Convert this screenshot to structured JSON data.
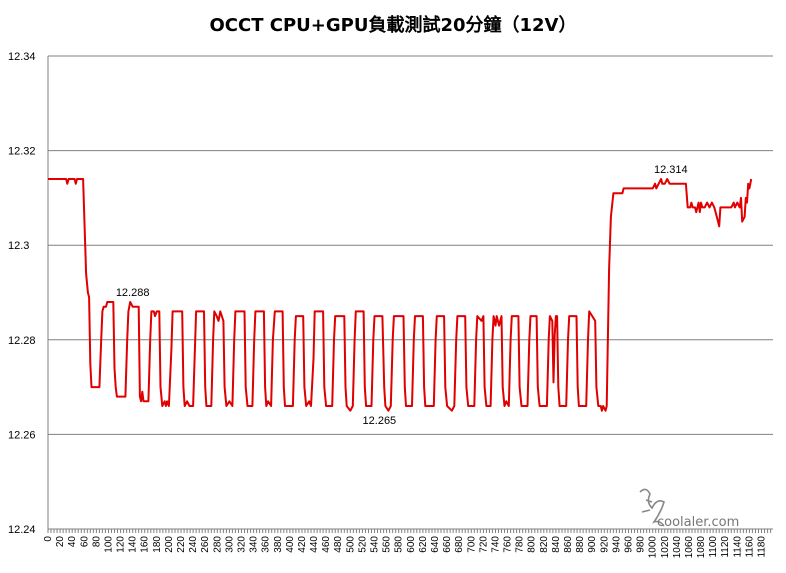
{
  "chart_data": {
    "type": "line",
    "title": "OCCT CPU+GPU負載測試20分鐘（12V）",
    "xlabel": "",
    "ylabel": "",
    "xlim": [
      0,
      1199
    ],
    "ylim": [
      12.24,
      12.34
    ],
    "y_ticks": [
      "12.24",
      "12.26",
      "12.28",
      "12.3",
      "12.32",
      "12.34"
    ],
    "x_tick_step": 20,
    "x_tick_max": 1180,
    "grid": true,
    "line_color": "#e00000",
    "series": [
      {
        "points": [
          [
            0,
            12.314
          ],
          [
            30,
            12.314
          ],
          [
            32,
            12.313
          ],
          [
            34,
            12.314
          ],
          [
            44,
            12.314
          ],
          [
            46,
            12.313
          ],
          [
            48,
            12.314
          ],
          [
            58,
            12.314
          ],
          [
            60,
            12.306
          ],
          [
            63,
            12.294
          ],
          [
            66,
            12.29
          ],
          [
            68,
            12.289
          ],
          [
            70,
            12.275
          ],
          [
            72,
            12.27
          ],
          [
            85,
            12.27
          ],
          [
            88,
            12.28
          ],
          [
            90,
            12.286
          ],
          [
            92,
            12.287
          ],
          [
            96,
            12.287
          ],
          [
            98,
            12.288
          ],
          [
            108,
            12.288
          ],
          [
            110,
            12.274
          ],
          [
            112,
            12.27
          ],
          [
            114,
            12.268
          ],
          [
            128,
            12.268
          ],
          [
            131,
            12.28
          ],
          [
            133,
            12.286
          ],
          [
            136,
            12.288
          ],
          [
            140,
            12.287
          ],
          [
            150,
            12.287
          ],
          [
            152,
            12.268
          ],
          [
            154,
            12.267
          ],
          [
            156,
            12.269
          ],
          [
            158,
            12.267
          ],
          [
            166,
            12.267
          ],
          [
            169,
            12.28
          ],
          [
            171,
            12.286
          ],
          [
            175,
            12.286
          ],
          [
            177,
            12.285
          ],
          [
            180,
            12.286
          ],
          [
            184,
            12.286
          ],
          [
            186,
            12.27
          ],
          [
            189,
            12.266
          ],
          [
            193,
            12.267
          ],
          [
            195,
            12.266
          ],
          [
            197,
            12.267
          ],
          [
            200,
            12.266
          ],
          [
            204,
            12.278
          ],
          [
            206,
            12.286
          ],
          [
            222,
            12.286
          ],
          [
            224,
            12.27
          ],
          [
            226,
            12.266
          ],
          [
            230,
            12.267
          ],
          [
            234,
            12.266
          ],
          [
            240,
            12.266
          ],
          [
            243,
            12.278
          ],
          [
            245,
            12.286
          ],
          [
            258,
            12.286
          ],
          [
            260,
            12.27
          ],
          [
            262,
            12.266
          ],
          [
            270,
            12.266
          ],
          [
            273,
            12.28
          ],
          [
            275,
            12.286
          ],
          [
            279,
            12.285
          ],
          [
            282,
            12.284
          ],
          [
            285,
            12.286
          ],
          [
            290,
            12.284
          ],
          [
            292,
            12.27
          ],
          [
            295,
            12.266
          ],
          [
            300,
            12.267
          ],
          [
            305,
            12.266
          ],
          [
            308,
            12.28
          ],
          [
            310,
            12.286
          ],
          [
            325,
            12.286
          ],
          [
            327,
            12.27
          ],
          [
            330,
            12.266
          ],
          [
            338,
            12.266
          ],
          [
            341,
            12.28
          ],
          [
            343,
            12.286
          ],
          [
            357,
            12.286
          ],
          [
            359,
            12.27
          ],
          [
            361,
            12.266
          ],
          [
            364,
            12.267
          ],
          [
            369,
            12.266
          ],
          [
            372,
            12.28
          ],
          [
            375,
            12.286
          ],
          [
            388,
            12.286
          ],
          [
            390,
            12.27
          ],
          [
            392,
            12.266
          ],
          [
            405,
            12.266
          ],
          [
            408,
            12.28
          ],
          [
            410,
            12.285
          ],
          [
            422,
            12.285
          ],
          [
            424,
            12.27
          ],
          [
            427,
            12.266
          ],
          [
            432,
            12.267
          ],
          [
            435,
            12.266
          ],
          [
            439,
            12.276
          ],
          [
            441,
            12.286
          ],
          [
            455,
            12.286
          ],
          [
            457,
            12.27
          ],
          [
            460,
            12.266
          ],
          [
            470,
            12.266
          ],
          [
            473,
            12.28
          ],
          [
            475,
            12.285
          ],
          [
            490,
            12.285
          ],
          [
            492,
            12.27
          ],
          [
            494,
            12.266
          ],
          [
            500,
            12.265
          ],
          [
            504,
            12.266
          ],
          [
            507,
            12.28
          ],
          [
            509,
            12.286
          ],
          [
            522,
            12.286
          ],
          [
            524,
            12.27
          ],
          [
            526,
            12.266
          ],
          [
            535,
            12.266
          ],
          [
            538,
            12.28
          ],
          [
            540,
            12.285
          ],
          [
            553,
            12.285
          ],
          [
            556,
            12.27
          ],
          [
            558,
            12.266
          ],
          [
            563,
            12.265
          ],
          [
            567,
            12.266
          ],
          [
            570,
            12.28
          ],
          [
            572,
            12.285
          ],
          [
            588,
            12.285
          ],
          [
            590,
            12.27
          ],
          [
            592,
            12.266
          ],
          [
            602,
            12.266
          ],
          [
            605,
            12.28
          ],
          [
            607,
            12.285
          ],
          [
            620,
            12.285
          ],
          [
            622,
            12.27
          ],
          [
            624,
            12.266
          ],
          [
            638,
            12.266
          ],
          [
            641,
            12.28
          ],
          [
            643,
            12.285
          ],
          [
            655,
            12.285
          ],
          [
            657,
            12.27
          ],
          [
            660,
            12.266
          ],
          [
            668,
            12.265
          ],
          [
            672,
            12.266
          ],
          [
            675,
            12.28
          ],
          [
            677,
            12.285
          ],
          [
            690,
            12.285
          ],
          [
            692,
            12.27
          ],
          [
            695,
            12.266
          ],
          [
            705,
            12.266
          ],
          [
            708,
            12.28
          ],
          [
            710,
            12.285
          ],
          [
            717,
            12.284
          ],
          [
            720,
            12.285
          ],
          [
            722,
            12.27
          ],
          [
            725,
            12.266
          ],
          [
            732,
            12.266
          ],
          [
            735,
            12.28
          ],
          [
            737,
            12.285
          ],
          [
            740,
            12.283
          ],
          [
            742,
            12.285
          ],
          [
            746,
            12.283
          ],
          [
            750,
            12.285
          ],
          [
            752,
            12.27
          ],
          [
            755,
            12.266
          ],
          [
            758,
            12.267
          ],
          [
            762,
            12.266
          ],
          [
            765,
            12.28
          ],
          [
            767,
            12.285
          ],
          [
            778,
            12.285
          ],
          [
            780,
            12.27
          ],
          [
            783,
            12.266
          ],
          [
            793,
            12.266
          ],
          [
            796,
            12.28
          ],
          [
            798,
            12.285
          ],
          [
            808,
            12.285
          ],
          [
            810,
            12.27
          ],
          [
            813,
            12.266
          ],
          [
            825,
            12.266
          ],
          [
            828,
            12.28
          ],
          [
            830,
            12.285
          ],
          [
            834,
            12.284
          ],
          [
            836,
            12.271
          ],
          [
            838,
            12.281
          ],
          [
            840,
            12.285
          ],
          [
            842,
            12.285
          ],
          [
            844,
            12.27
          ],
          [
            846,
            12.266
          ],
          [
            857,
            12.266
          ],
          [
            860,
            12.28
          ],
          [
            862,
            12.285
          ],
          [
            874,
            12.285
          ],
          [
            876,
            12.27
          ],
          [
            878,
            12.266
          ],
          [
            890,
            12.266
          ],
          [
            893,
            12.28
          ],
          [
            895,
            12.286
          ],
          [
            900,
            12.285
          ],
          [
            905,
            12.284
          ],
          [
            907,
            12.27
          ],
          [
            910,
            12.266
          ],
          [
            914,
            12.266
          ],
          [
            916,
            12.265
          ],
          [
            918,
            12.266
          ],
          [
            922,
            12.265
          ],
          [
            924,
            12.266
          ],
          [
            928,
            12.295
          ],
          [
            931,
            12.306
          ],
          [
            935,
            12.311
          ],
          [
            950,
            12.311
          ],
          [
            952,
            12.312
          ],
          [
            1000,
            12.312
          ],
          [
            1004,
            12.313
          ],
          [
            1006,
            12.312
          ],
          [
            1010,
            12.313
          ],
          [
            1014,
            12.314
          ],
          [
            1016,
            12.313
          ],
          [
            1020,
            12.313
          ],
          [
            1024,
            12.314
          ],
          [
            1028,
            12.313
          ],
          [
            1055,
            12.313
          ],
          [
            1058,
            12.308
          ],
          [
            1062,
            12.308
          ],
          [
            1064,
            12.309
          ],
          [
            1066,
            12.308
          ],
          [
            1070,
            12.308
          ],
          [
            1072,
            12.307
          ],
          [
            1074,
            12.308
          ],
          [
            1076,
            12.309
          ],
          [
            1078,
            12.307
          ],
          [
            1080,
            12.309
          ],
          [
            1082,
            12.308
          ],
          [
            1086,
            12.308
          ],
          [
            1090,
            12.309
          ],
          [
            1094,
            12.308
          ],
          [
            1098,
            12.309
          ],
          [
            1102,
            12.308
          ],
          [
            1106,
            12.306
          ],
          [
            1110,
            12.304
          ],
          [
            1112,
            12.308
          ],
          [
            1120,
            12.308
          ],
          [
            1130,
            12.308
          ],
          [
            1134,
            12.309
          ],
          [
            1136,
            12.308
          ],
          [
            1140,
            12.309
          ],
          [
            1144,
            12.308
          ],
          [
            1146,
            12.31
          ],
          [
            1148,
            12.305
          ],
          [
            1152,
            12.306
          ],
          [
            1154,
            12.31
          ],
          [
            1156,
            12.309
          ],
          [
            1158,
            12.313
          ],
          [
            1160,
            12.312
          ],
          [
            1163,
            12.314
          ]
        ]
      }
    ],
    "annotations": [
      {
        "label": "12.288",
        "x": 140,
        "y": 12.288
      },
      {
        "label": "12.265",
        "x": 548,
        "y": 12.265
      },
      {
        "label": "12.314",
        "x": 1030,
        "y": 12.314
      }
    ]
  },
  "watermark": {
    "text": "coolaler.com"
  }
}
